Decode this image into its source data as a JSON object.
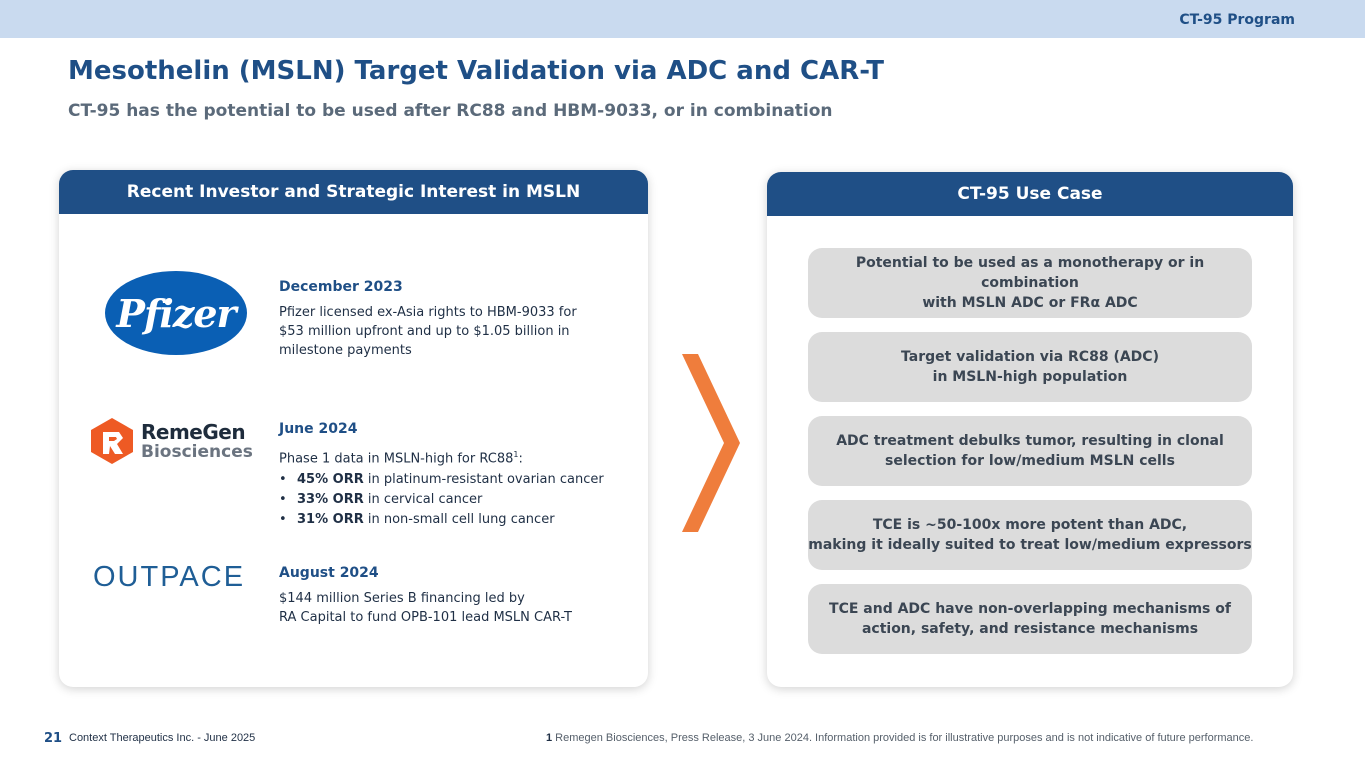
{
  "header": {
    "program_tag": "CT-95 Program",
    "title": "Mesothelin (MSLN) Target Validation via ADC and CAR-T",
    "subtitle": "CT-95 has the potential to be used after RC88 and HBM-9033, or in combination"
  },
  "left_panel": {
    "title": "Recent Investor and Strategic Interest in MSLN",
    "entries": [
      {
        "logo": "Pfizer",
        "date": "December 2023",
        "text": "Pfizer licensed ex-Asia rights to HBM-9033 for\n$53 million upfront and up to $1.05 billion in\nmilestone payments"
      },
      {
        "logo_line1": "RemeGen",
        "logo_line2": "Biosciences",
        "date": "June 2024",
        "text": "Phase 1 data in MSLN-high for RC88",
        "text_sup": "1",
        "text_suffix": ":",
        "bullets": [
          {
            "bold": "45% ORR",
            "rest": " in platinum-resistant ovarian cancer"
          },
          {
            "bold": "33% ORR",
            "rest": " in cervical cancer"
          },
          {
            "bold": "31% ORR",
            "rest": " in non-small cell lung cancer"
          }
        ]
      },
      {
        "logo": "OUTPACE",
        "date": "August 2024",
        "text": "$144 million Series B financing led by\nRA Capital to fund OPB-101 lead MSLN CAR-T"
      }
    ]
  },
  "arrow_icon": "chevron-right-icon",
  "right_panel": {
    "title": "CT-95 Use Case",
    "items": [
      "Potential to be used as a monotherapy or in combination\nwith MSLN ADC or FRα ADC",
      "Target validation via RC88 (ADC)\nin MSLN-high population",
      "ADC treatment debulks tumor, resulting in clonal\nselection for low/medium MSLN cells",
      "TCE is ~50-100x more potent than ADC,\nmaking it ideally suited to treat low/medium expressors",
      "TCE and ADC have non-overlapping mechanisms of\naction, safety, and resistance mechanisms"
    ]
  },
  "footer": {
    "page_number": "21",
    "company": "Context Therapeutics Inc. -  June 2025",
    "note_number": "1",
    "note_text": " Remegen Biosciences, Press Release, 3 June 2024. Information provided is for illustrative purposes and is not indicative of future performance."
  },
  "colors": {
    "brand_blue": "#1f4f86",
    "top_band": "#c9daef",
    "accent_orange": "#ef7d3c",
    "usecase_gray": "#dcdcdc"
  }
}
